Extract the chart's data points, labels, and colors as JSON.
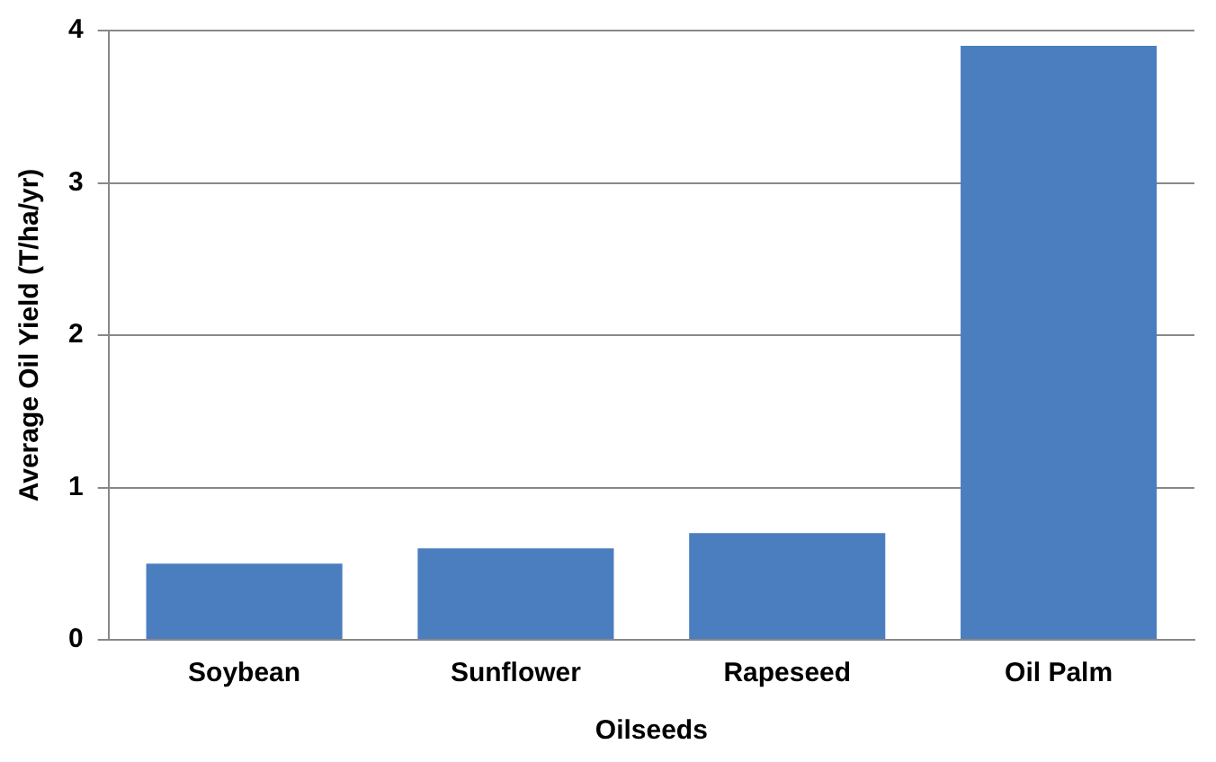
{
  "chart_data": {
    "type": "bar",
    "xlabel": "Oilseeds",
    "ylabel": "Average Oil Yield (T/ha/yr)",
    "categories": [
      "Soybean",
      "Sunflower",
      "Rapeseed",
      "Oil Palm"
    ],
    "values": [
      0.5,
      0.6,
      0.7,
      3.9
    ],
    "color": "#4a7ebf",
    "ylim": [
      0,
      4
    ],
    "yticks": [
      0,
      1,
      2,
      3,
      4
    ],
    "grid": "y",
    "legend": false
  }
}
